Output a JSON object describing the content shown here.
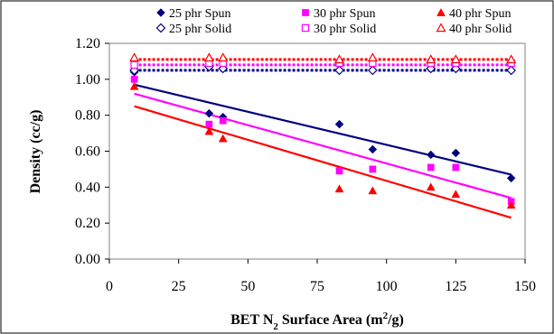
{
  "chart_data": {
    "type": "scatter",
    "xlabel": "BET N₂ Surface Area (m²/g)",
    "xlabel_parts": {
      "main": "BET N",
      "sub": "2",
      "mid": " Surface Area (m",
      "sup": "2",
      "end": "/g)"
    },
    "ylabel": "Density (cc/g)",
    "xlim": [
      0,
      150
    ],
    "ylim": [
      0.0,
      1.2
    ],
    "x_ticks": [
      0,
      25,
      50,
      75,
      100,
      125,
      150
    ],
    "y_ticks": [
      0.0,
      0.2,
      0.4,
      0.6,
      0.8,
      1.0,
      1.2
    ],
    "x_tick_labels": [
      "0",
      "25",
      "50",
      "75",
      "100",
      "125",
      "150"
    ],
    "y_tick_labels": [
      "0.00",
      "0.20",
      "0.40",
      "0.60",
      "0.80",
      "1.00",
      "1.20"
    ],
    "grid": "none",
    "legend_position": "top",
    "series": [
      {
        "name": "25 phr Spun",
        "color": "#000080",
        "marker": "diamond-filled",
        "x": [
          9,
          36,
          41,
          83,
          95,
          116,
          125,
          145
        ],
        "y": [
          1.04,
          0.81,
          0.79,
          0.75,
          0.61,
          0.58,
          0.59,
          0.45
        ],
        "trend": {
          "style": "solid",
          "x": [
            9,
            145
          ],
          "y": [
            0.97,
            0.47
          ]
        }
      },
      {
        "name": "30 phr Spun",
        "color": "#FF00FF",
        "marker": "square-filled",
        "x": [
          9,
          36,
          41,
          83,
          95,
          116,
          125,
          145
        ],
        "y": [
          1.0,
          0.75,
          0.77,
          0.49,
          0.5,
          0.51,
          0.51,
          0.32
        ],
        "trend": {
          "style": "solid",
          "x": [
            9,
            145
          ],
          "y": [
            0.92,
            0.34
          ]
        }
      },
      {
        "name": "40 phr Spun",
        "color": "#FF0000",
        "marker": "triangle-filled",
        "x": [
          9,
          36,
          41,
          83,
          95,
          116,
          125,
          145
        ],
        "y": [
          0.96,
          0.71,
          0.67,
          0.39,
          0.38,
          0.4,
          0.36,
          0.3
        ],
        "trend": {
          "style": "solid",
          "x": [
            9,
            145
          ],
          "y": [
            0.85,
            0.23
          ]
        }
      },
      {
        "name": "25 phr Solid",
        "color": "#000080",
        "marker": "diamond-open",
        "x": [
          9,
          36,
          41,
          83,
          95,
          116,
          125,
          145
        ],
        "y": [
          1.05,
          1.07,
          1.06,
          1.05,
          1.05,
          1.06,
          1.06,
          1.05
        ],
        "trend": {
          "style": "dotted",
          "x": [
            9,
            145
          ],
          "y": [
            1.05,
            1.05
          ]
        }
      },
      {
        "name": "30 phr Solid",
        "color": "#FF00FF",
        "marker": "square-open",
        "x": [
          9,
          36,
          41,
          83,
          95,
          116,
          125,
          145
        ],
        "y": [
          1.08,
          1.09,
          1.09,
          1.09,
          1.09,
          1.09,
          1.09,
          1.09
        ],
        "trend": {
          "style": "dotted",
          "x": [
            9,
            145
          ],
          "y": [
            1.08,
            1.08
          ]
        }
      },
      {
        "name": "40 phr Solid",
        "color": "#FF0000",
        "marker": "triangle-open",
        "x": [
          9,
          36,
          41,
          83,
          95,
          116,
          125,
          145
        ],
        "y": [
          1.12,
          1.12,
          1.12,
          1.11,
          1.12,
          1.11,
          1.11,
          1.11
        ],
        "trend": {
          "style": "dotted",
          "x": [
            9,
            145
          ],
          "y": [
            1.11,
            1.11
          ]
        }
      }
    ]
  }
}
